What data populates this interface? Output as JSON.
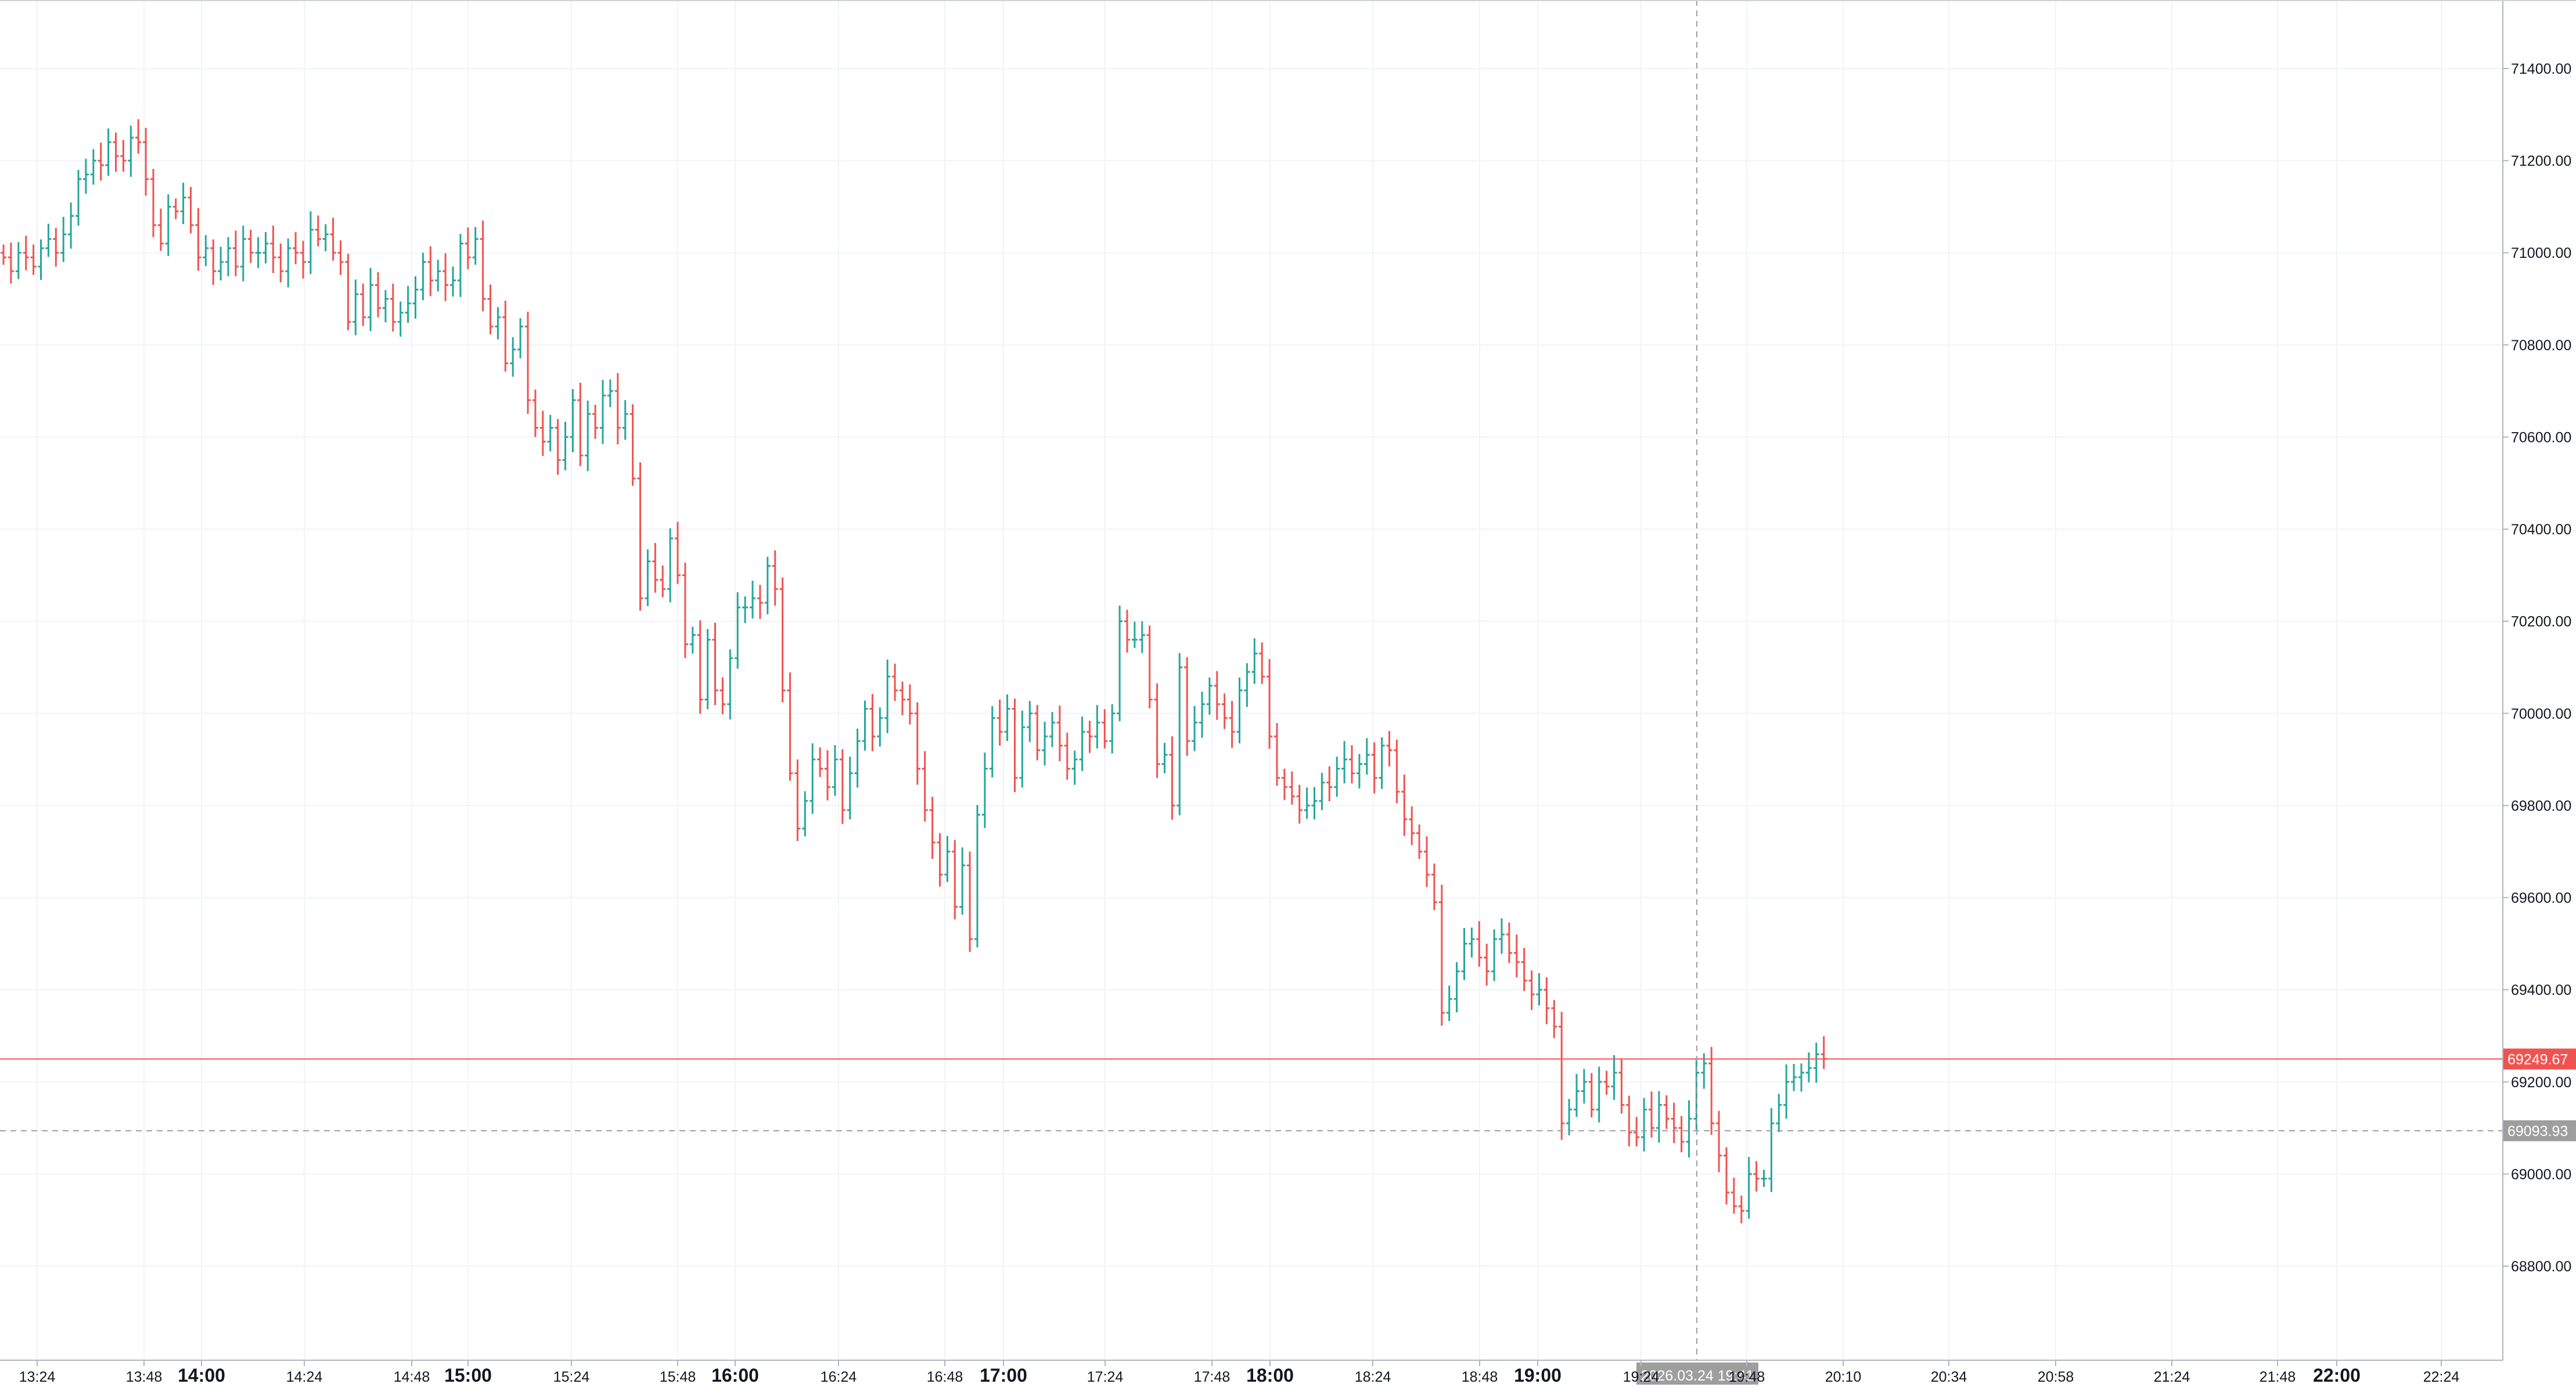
{
  "chart_data": {
    "type": "bar",
    "subtype": "ohlc-price-bars",
    "title": "",
    "xlabel": "",
    "ylabel": "",
    "y_ticks": [
      "71400.00",
      "71200.00",
      "71000.00",
      "70800.00",
      "70600.00",
      "70400.00",
      "70200.00",
      "70000.00",
      "69800.00",
      "69600.00",
      "69400.00",
      "69200.00",
      "69000.00",
      "68800.00"
    ],
    "ylim": [
      68640,
      71570
    ],
    "x_ticks": [
      {
        "label": "13:24",
        "bold": false
      },
      {
        "label": "13:48",
        "bold": false
      },
      {
        "label": "14:00",
        "bold": true
      },
      {
        "label": "14:24",
        "bold": false
      },
      {
        "label": "14:48",
        "bold": false
      },
      {
        "label": "15:00",
        "bold": true
      },
      {
        "label": "15:24",
        "bold": false
      },
      {
        "label": "15:48",
        "bold": false
      },
      {
        "label": "16:00",
        "bold": true
      },
      {
        "label": "16:24",
        "bold": false
      },
      {
        "label": "16:48",
        "bold": false
      },
      {
        "label": "17:00",
        "bold": true
      },
      {
        "label": "17:24",
        "bold": false
      },
      {
        "label": "17:48",
        "bold": false
      },
      {
        "label": "18:00",
        "bold": true
      },
      {
        "label": "18:24",
        "bold": false
      },
      {
        "label": "18:48",
        "bold": false
      },
      {
        "label": "19:00",
        "bold": true
      },
      {
        "label": "19:24",
        "bold": false
      },
      {
        "label": "19:48",
        "bold": false
      },
      {
        "label": "20:10",
        "bold": false
      },
      {
        "label": "20:34",
        "bold": false
      },
      {
        "label": "20:58",
        "bold": false
      },
      {
        "label": "21:24",
        "bold": false
      },
      {
        "label": "21:48",
        "bold": false
      },
      {
        "label": "22:00",
        "bold": true
      },
      {
        "label": "22:24",
        "bold": false
      }
    ],
    "last_price_label": "69249.67",
    "last_price": 69249.67,
    "crosshair_price_label": "69093.93",
    "crosshair_price": 69093.93,
    "crosshair_time_label": "2026.03.24 19:41",
    "grid": true,
    "colors": {
      "up": "#26a69a",
      "down": "#ef5350",
      "last_price": "#ef5350",
      "crosshair_tag": "#9e9e9e",
      "grid": "#f0f3fa",
      "axis_text": "#131722"
    },
    "series": [
      {
        "values_close": [
          70990,
          70960,
          71000,
          70990,
          70970,
          71010,
          71030,
          71000,
          71040,
          71080,
          71160,
          71170,
          71200,
          71190,
          71240,
          71210,
          71200,
          71250,
          71240,
          71160,
          71060,
          71020,
          71100,
          71090,
          71120,
          71060,
          70990,
          71010,
          70960,
          70980,
          71010,
          70970,
          71030,
          71000,
          71000,
          71020,
          70990,
          70960,
          71010,
          71000,
          70980,
          71050,
          71030,
          71040,
          71000,
          70980,
          70850,
          70910,
          70860,
          70930,
          70880,
          70900,
          70850,
          70870,
          70890,
          70920,
          70980,
          70940,
          70960,
          70930,
          70940,
          71020,
          70990,
          71030,
          70900,
          70840,
          70860,
          70760,
          70790,
          70840,
          70680,
          70620,
          70590,
          70620,
          70550,
          70600,
          70680,
          70560,
          70650,
          70620,
          70690,
          70700,
          70620,
          70650,
          70510,
          70250,
          70330,
          70290,
          70270,
          70380,
          70300,
          70150,
          70170,
          70030,
          70160,
          70050,
          70020,
          70120,
          70230,
          70230,
          70250,
          70240,
          70320,
          70270,
          70050,
          69870,
          69750,
          69810,
          69900,
          69880,
          69840,
          69900,
          69790,
          69870,
          69940,
          70010,
          69950,
          69990,
          70080,
          70050,
          70030,
          70000,
          69880,
          69790,
          69720,
          69650,
          69700,
          69580,
          69670,
          69510,
          69780,
          69880,
          69990,
          69960,
          70010,
          69860,
          69970,
          70000,
          69920,
          69950,
          69980,
          69930,
          69880,
          69900,
          69960,
          69950,
          69980,
          69940,
          70000,
          70200,
          70160,
          70160,
          70170,
          70030,
          69890,
          69910,
          69800,
          70100,
          69940,
          69980,
          70020,
          70060,
          70020,
          69990,
          69960,
          70050,
          70090,
          70130,
          70080,
          69950,
          69860,
          69840,
          69820,
          69790,
          69800,
          69810,
          69850,
          69840,
          69880,
          69900,
          69870,
          69890,
          69910,
          69860,
          69930,
          69920,
          69830,
          69770,
          69740,
          69700,
          69650,
          69590,
          69350,
          69380,
          69440,
          69500,
          69510,
          69470,
          69440,
          69510,
          69520,
          69480,
          69460,
          69420,
          69390,
          69400,
          69360,
          69320,
          69110,
          69140,
          69180,
          69200,
          69140,
          69200,
          69190,
          69220,
          69150,
          69090,
          69080,
          69140,
          69100,
          69150,
          69120,
          69100,
          69070,
          69120,
          69220,
          69240,
          69110,
          69040,
          68960,
          68930,
          68920,
          69000,
          68990,
          68990,
          69110,
          69150,
          69200,
          69210,
          69220,
          69230,
          69260,
          69250
        ]
      }
    ]
  }
}
